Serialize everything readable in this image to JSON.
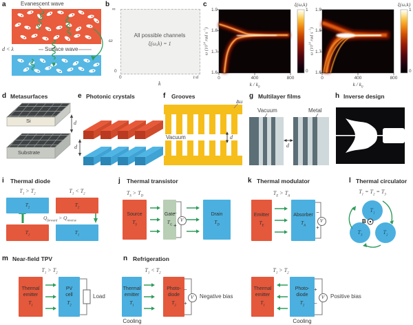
{
  "a": {
    "letter": "a",
    "evanescent": "Evanescent wave",
    "gap": "d < λ",
    "surface": "Surface wave"
  },
  "b": {
    "letter": "b",
    "line1": "All possible channels",
    "line2": "ξ(ω,k) = 1",
    "y_top": "∞",
    "y_zero": "0",
    "ylabel": "ω",
    "x_zero": "0",
    "x_max": "1/d",
    "xlabel": "k"
  },
  "c": {
    "letter": "c",
    "ylabel": "ω (10^14^ rad s^−1^)",
    "xlabel": "k / k~0~",
    "yticks": [
      "1.9",
      "1.8",
      "1.7",
      "1.6"
    ],
    "xticks": [
      "0",
      "400",
      "800"
    ],
    "cb_title": "ξ(ω,k)",
    "cb_max": "1",
    "cb_min": "0"
  },
  "d": {
    "letter": "d",
    "title": "Metasurfaces",
    "si": "Si",
    "substrate": "Substrate",
    "gap": "d"
  },
  "e": {
    "letter": "e",
    "title": "Photonic crystals",
    "gap": "d"
  },
  "f": {
    "letter": "f",
    "title": "Grooves",
    "au": "Au",
    "vacuum": "Vacuum",
    "gap": "d"
  },
  "g": {
    "letter": "g",
    "title": "Multilayer films",
    "vacuum": "Vacuum",
    "metal": "Metal",
    "gap": "d"
  },
  "h": {
    "letter": "h",
    "title": "Inverse design"
  },
  "i": {
    "letter": "i",
    "title": "Thermal diode",
    "left_heading": "T~1~ > T~2~",
    "right_heading": "T~1~ < T~2~",
    "left_top": "T~2~",
    "left_bottom": "T~1~",
    "right_top": "T~2~",
    "right_bottom": "T~1~",
    "relation": "Q~forward~ > Q~reverse~"
  },
  "j": {
    "letter": "j",
    "title": "Thermal transistor",
    "heading": "T~S~ > T~D~",
    "source_name": "Source",
    "source_t": "T~S~",
    "gate_name": "Gate",
    "gate_t": "T~G~",
    "drain_name": "Drain",
    "drain_t": "T~D~",
    "v": "V",
    "minus": "−",
    "plus": "+"
  },
  "k": {
    "letter": "k",
    "title": "Thermal modulator",
    "heading": "T~E~ > T~A~",
    "emitter_name": "Emitter",
    "emitter_t": "T~E~",
    "absorber_name": "Absorber",
    "absorber_t": "T~A~",
    "v": "V",
    "minus": "−",
    "plus": "+"
  },
  "l": {
    "letter": "l",
    "title": "Thermal circulator",
    "heading": "T~1~ = T~2~ = T~3~",
    "c1": "T~1~",
    "c2": "T~2~",
    "c3": "T~3~",
    "b_field": "B"
  },
  "m": {
    "letter": "m",
    "title": "Near-field TPV",
    "heading": "T~1~ > T~2~",
    "emitter_l1": "Thermal",
    "emitter_l2": "emitter",
    "emitter_t": "T~1~",
    "pv_l1": "PV",
    "pv_l2": "cell",
    "pv_t": "T~2~",
    "load": "Load"
  },
  "n": {
    "letter": "n",
    "title": "Refrigeration",
    "neg": {
      "heading": "T~1~ < T~2~",
      "emitter_l1": "Thermal",
      "emitter_l2": "emitter",
      "emitter_t": "T~1~",
      "diode_l1": "Photo-",
      "diode_l2": "diode",
      "diode_t": "T~2~",
      "cooling": "Cooling",
      "bias": "Negative bias",
      "v": "V",
      "minus": "−",
      "plus": "+"
    },
    "pos": {
      "heading": "T~1~ > T~2~",
      "emitter_l1": "Thermal",
      "emitter_l2": "emitter",
      "emitter_t": "T~1~",
      "diode_l1": "Photo-",
      "diode_l2": "diode",
      "diode_t": "T~2~",
      "cooling": "Cooling",
      "bias": "Positive bias",
      "v": "V",
      "minus": "−",
      "plus": "+"
    }
  },
  "chart_data": [
    {
      "panel": "b",
      "type": "area",
      "title": "All possible channels ξ(ω,k) = 1",
      "xlabel": "k",
      "ylabel": "ω",
      "x_range": [
        "0",
        "1/d"
      ],
      "y_range": [
        "0",
        "∞"
      ],
      "description": "Uniform shaded region: every photonic channel available, ξ(ω,k)=1"
    },
    {
      "panel": "c-left",
      "type": "heatmap",
      "xlabel": "k/k0",
      "ylabel": "ω (10^14 rad s^-1)",
      "xlim": [
        0,
        800
      ],
      "ylim": [
        1.6,
        1.9
      ],
      "colorbar_label": "ξ(ω,k)",
      "colorbar_range": [
        0,
        1
      ],
      "description": "Two thin surface-polariton branches (one rising from ω≈1.6 at small k, one descending from ω≈1.83) converge to a bright asymptote at ω≈1.78 extending to k/k0≈800"
    },
    {
      "panel": "c-right",
      "type": "heatmap",
      "xlabel": "k/k0",
      "ylabel": "ω (10^14 rad s^-1)",
      "xlim": [
        0,
        800
      ],
      "ylim": [
        1.6,
        1.9
      ],
      "colorbar_label": "ξ(ω,k)",
      "colorbar_range": [
        0,
        1
      ],
      "description": "Broadened multi-branch fan of high-ξ modes converging to the same asymptote near ω≈1.78 with a wide bright region"
    }
  ]
}
